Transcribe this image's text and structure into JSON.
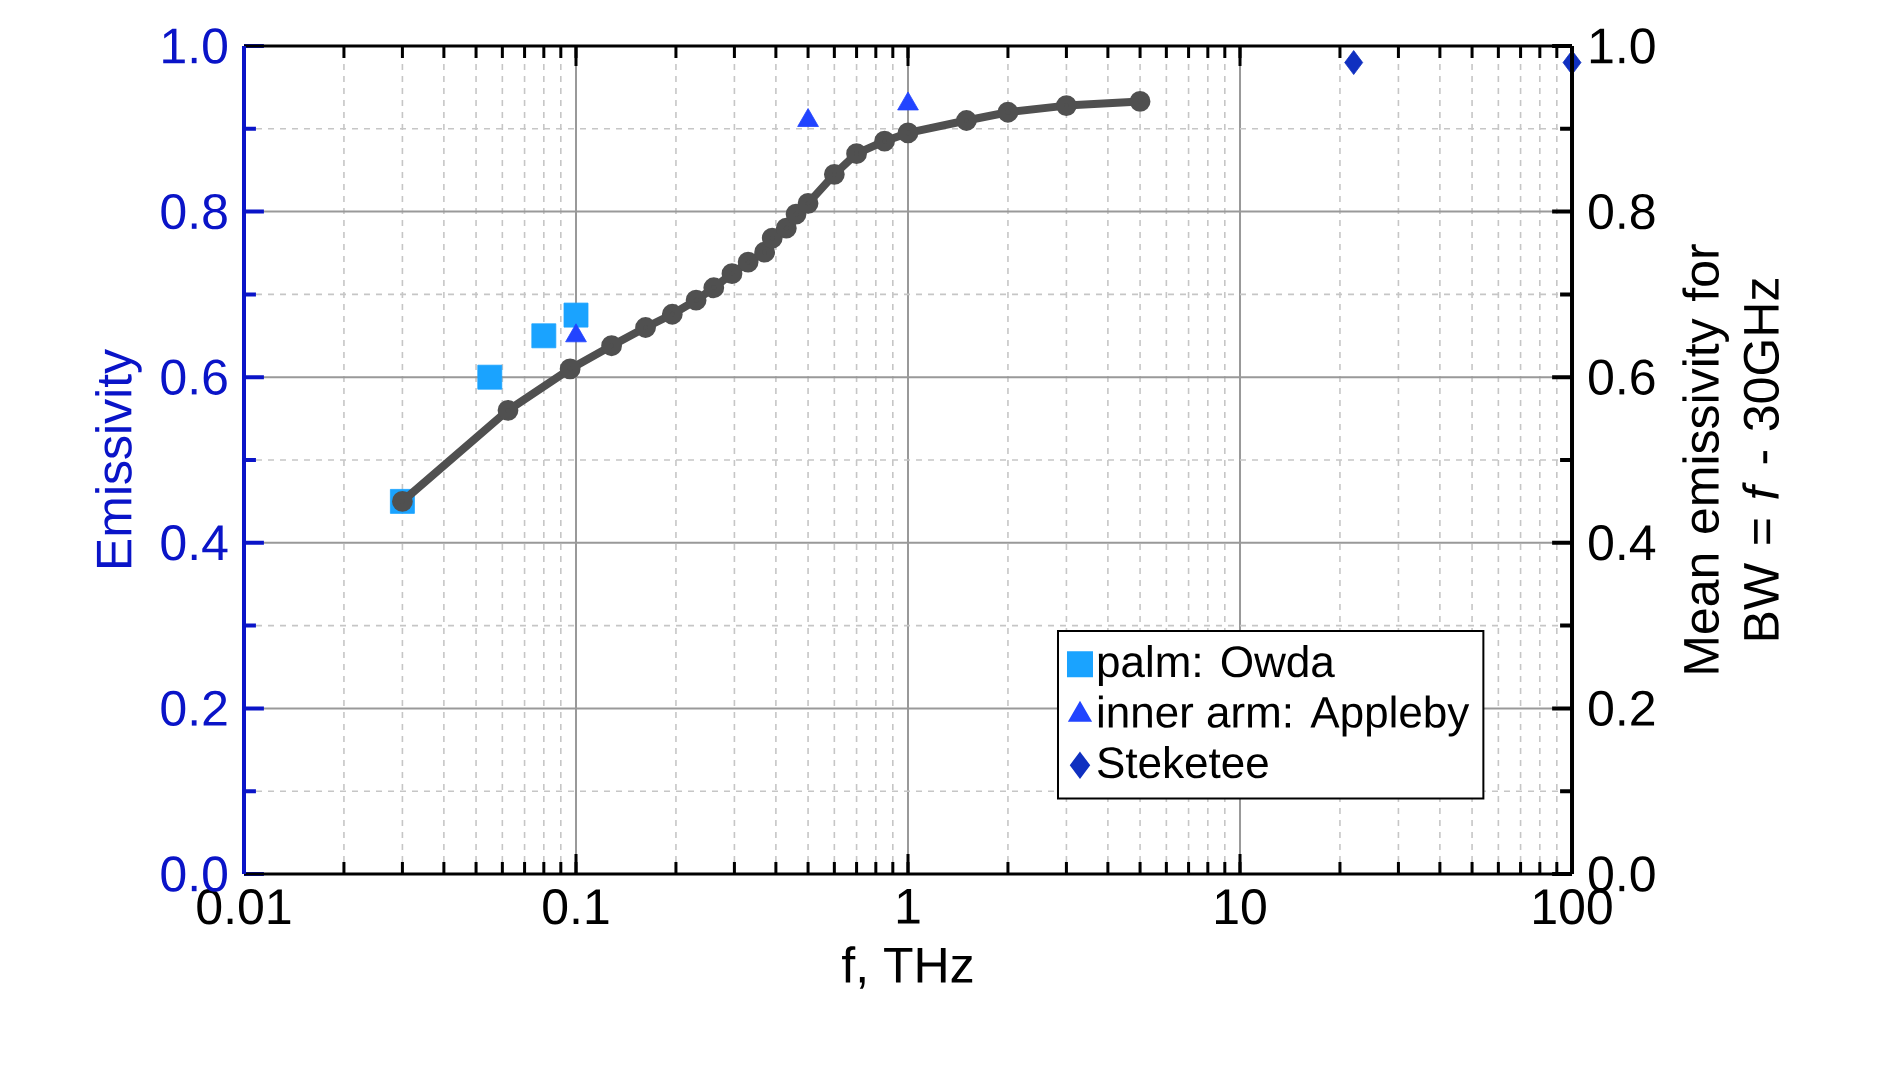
{
  "chart_data": {
    "type": "scatter",
    "xlabel": "f, THz",
    "ylabel": "Emissivity",
    "y2label": "Mean emissivity for BW = *f* - 30GHz",
    "log": "x",
    "grid": true,
    "legend": "bottom right",
    "xlim": [
      0.01,
      100
    ],
    "xticks": [
      0.01,
      0.1,
      1,
      10,
      100
    ],
    "ylim": [
      0,
      1
    ],
    "yticks": [
      {
        "value": 0,
        "label": "0.0"
      },
      0.2,
      0.4,
      0.6,
      0.8,
      {
        "value": 1,
        "label": "1.0"
      }
    ],
    "y2lim": [
      0,
      1
    ],
    "y2ticks": [
      {
        "value": 0,
        "label": "0.0"
      },
      0.2,
      0.4,
      0.6,
      0.8,
      {
        "value": 1,
        "label": "1.0"
      }
    ],
    "series": [
      {
        "name": "palm: Owda",
        "marker": "square",
        "color": "#1aa3ff",
        "x": [
          0.03,
          0.055,
          0.08,
          0.1
        ],
        "values": [
          0.45,
          0.6,
          0.65,
          0.675
        ]
      },
      {
        "name": "inner arm: Appleby",
        "marker": "triangle",
        "color": "#2244ff",
        "x": [
          0.1,
          0.5,
          1
        ],
        "values": [
          0.65,
          0.91,
          0.93
        ]
      },
      {
        "name": "Steketee",
        "marker": "diamond",
        "color": "#1030c0",
        "x": [
          22,
          100
        ],
        "values": [
          0.98,
          0.98
        ]
      },
      {
        "type": "line",
        "axis": "y2",
        "marker": "circle",
        "line_style": "solid",
        "color": "#505050",
        "x": [
          0.03,
          0.0624,
          0.096,
          0.128,
          0.162,
          0.195,
          0.23,
          0.26,
          0.295,
          0.33,
          0.37,
          0.39,
          0.43,
          0.46,
          0.5,
          0.6,
          0.7,
          0.85,
          1,
          1.5,
          2,
          3,
          5
        ],
        "values": [
          0.45,
          0.56,
          0.61,
          0.638,
          0.66,
          0.676,
          0.693,
          0.708,
          0.725,
          0.739,
          0.751,
          0.768,
          0.78,
          0.797,
          0.81,
          0.845,
          0.87,
          0.885,
          0.895,
          0.91,
          0.92,
          0.928,
          0.933
        ]
      }
    ]
  }
}
